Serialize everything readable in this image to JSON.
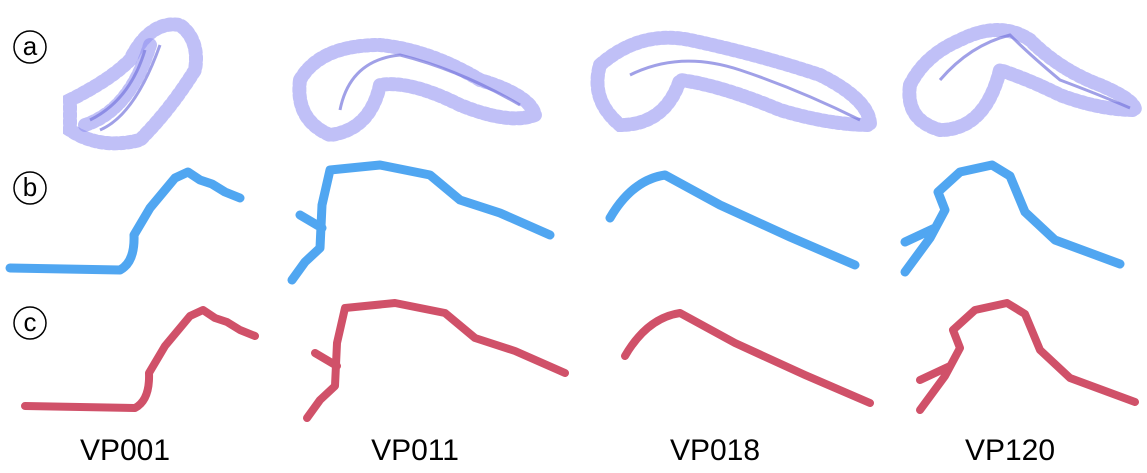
{
  "rows": [
    {
      "label": "a"
    },
    {
      "label": "b"
    },
    {
      "label": "c"
    }
  ],
  "columns": [
    {
      "label": "VP001"
    },
    {
      "label": "VP011"
    },
    {
      "label": "VP018"
    },
    {
      "label": "VP120"
    }
  ]
}
